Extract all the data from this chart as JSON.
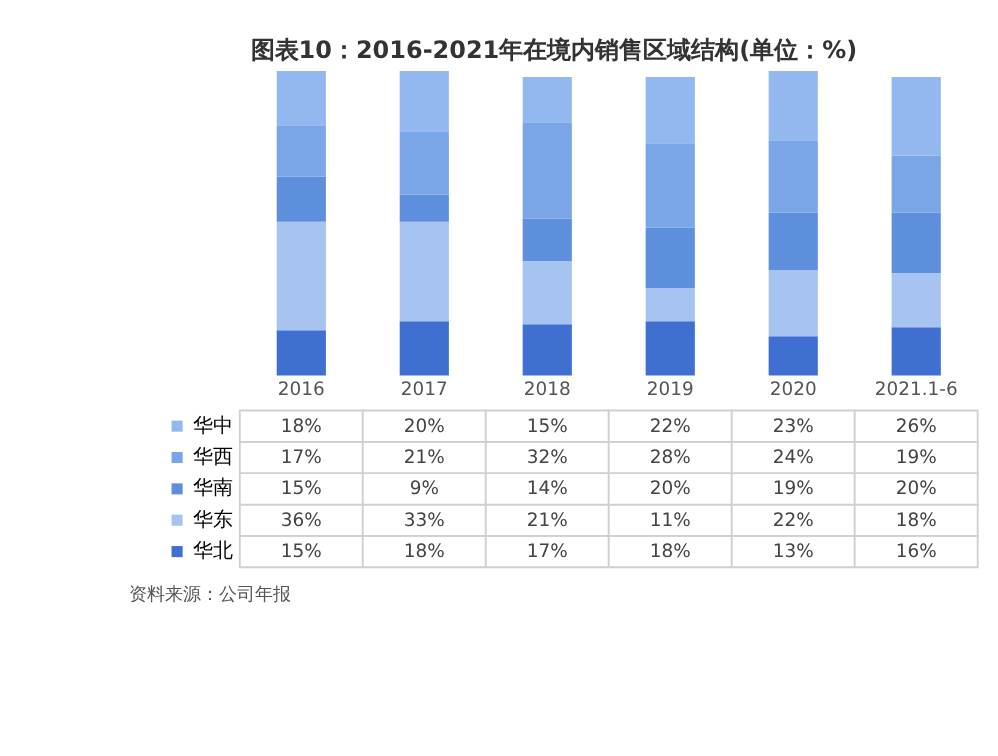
{
  "chart_data": {
    "type": "bar",
    "stacked": true,
    "title": "图表10：2016-2021年在境内销售区域结构(单位：%)",
    "categories": [
      "2016",
      "2017",
      "2018",
      "2019",
      "2020",
      "2021.1-6"
    ],
    "series": [
      {
        "name": "华北",
        "color": "#3e6fd1",
        "values": [
          15,
          18,
          17,
          18,
          13,
          16
        ],
        "value_labels": [
          "15%",
          "18%",
          "17%",
          "18%",
          "13%",
          "16%"
        ]
      },
      {
        "name": "华东",
        "color": "#a7c3ef",
        "values": [
          36,
          33,
          21,
          11,
          22,
          18
        ],
        "value_labels": [
          "36%",
          "33%",
          "21%",
          "11%",
          "22%",
          "18%"
        ]
      },
      {
        "name": "华南",
        "color": "#5e8fdc",
        "values": [
          15,
          9,
          14,
          20,
          19,
          20
        ],
        "value_labels": [
          "15%",
          "9%",
          "14%",
          "20%",
          "19%",
          "20%"
        ]
      },
      {
        "name": "华西",
        "color": "#7aa6e8",
        "values": [
          17,
          21,
          32,
          28,
          24,
          19
        ],
        "value_labels": [
          "17%",
          "21%",
          "32%",
          "28%",
          "24%",
          "19%"
        ]
      },
      {
        "name": "华中",
        "color": "#93b8f0",
        "values": [
          18,
          20,
          15,
          22,
          23,
          26
        ],
        "value_labels": [
          "18%",
          "20%",
          "15%",
          "22%",
          "23%",
          "26%"
        ]
      }
    ],
    "legend": "bottom left",
    "annotations": [
      "资料来源：公司年报"
    ]
  }
}
